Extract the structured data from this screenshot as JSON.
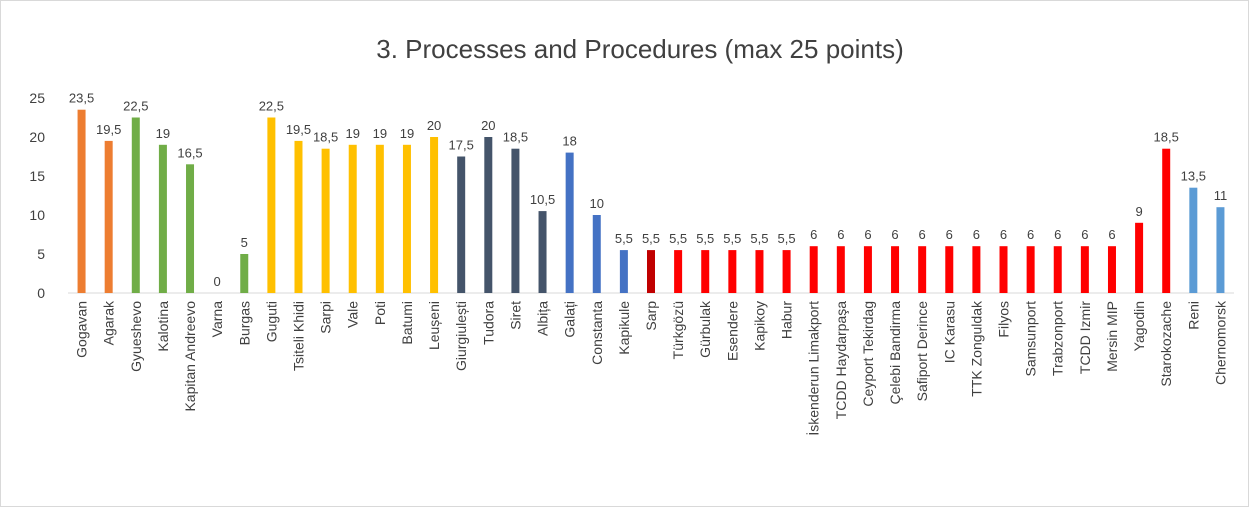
{
  "chart_data": {
    "type": "bar",
    "title": "3. Processes and Procedures (max 25 points)",
    "categories": [
      "Gogavan",
      "Agarak",
      "Gyueshevo",
      "Kalotina",
      "Kapitan Andreevo",
      "Varna",
      "Burgas",
      "Guguti",
      "Tsiteli Khidi",
      "Sarpi",
      "Vale",
      "Poti",
      "Batumi",
      "Leușeni",
      "Giurgiulești",
      "Tudora",
      "Siret",
      "Albița",
      "Galați",
      "Constanta",
      "Kapikule",
      "Sarp",
      "Türkgözü",
      "Gürbulak",
      "Esendere",
      "Kapikoy",
      "Habur",
      "İskenderun Limakport",
      "TCDD Haydarpaşa",
      "Ceyport Tekirdag",
      "Çelebi Bandirma",
      "Safiport Derince",
      "IC Karasu",
      "TTK Zonguldak",
      "Filyos",
      "Samsunport",
      "Trabzonport",
      "TCDD Izmir",
      "Mersin MIP",
      "Yagodin",
      "Starokozache",
      "Reni",
      "Chernomorsk"
    ],
    "values": [
      23.5,
      19.5,
      22.5,
      19,
      16.5,
      0,
      5,
      22.5,
      19.5,
      18.5,
      19,
      19,
      19,
      20,
      17.5,
      20,
      18.5,
      10.5,
      18,
      10,
      5.5,
      5.5,
      5.5,
      5.5,
      5.5,
      5.5,
      5.5,
      6,
      6,
      6,
      6,
      6,
      6,
      6,
      6,
      6,
      6,
      6,
      6,
      9,
      18.5,
      13.5,
      11
    ],
    "value_labels": [
      "23,5",
      "19,5",
      "22,5",
      "19",
      "16,5",
      "0",
      "5",
      "22,5",
      "19,5",
      "18,5",
      "19",
      "19",
      "19",
      "20",
      "17,5",
      "20",
      "18,5",
      "10,5",
      "18",
      "10",
      "5,5",
      "5,5",
      "5,5",
      "5,5",
      "5,5",
      "5,5",
      "5,5",
      "6",
      "6",
      "6",
      "6",
      "6",
      "6",
      "6",
      "6",
      "6",
      "6",
      "6",
      "6",
      "9",
      "18,5",
      "13,5",
      "11"
    ],
    "colors": [
      "#ED7D31",
      "#ED7D31",
      "#70AD47",
      "#70AD47",
      "#70AD47",
      "#70AD47",
      "#70AD47",
      "#FFC000",
      "#FFC000",
      "#FFC000",
      "#FFC000",
      "#FFC000",
      "#FFC000",
      "#FFC000",
      "#44546A",
      "#44546A",
      "#44546A",
      "#44546A",
      "#4472C4",
      "#4472C4",
      "#4472C4",
      "#C00000",
      "#FF0000",
      "#FF0000",
      "#FF0000",
      "#FF0000",
      "#FF0000",
      "#FF0000",
      "#FF0000",
      "#FF0000",
      "#FF0000",
      "#FF0000",
      "#FF0000",
      "#FF0000",
      "#FF0000",
      "#FF0000",
      "#FF0000",
      "#FF0000",
      "#FF0000",
      "#FF0000",
      "#FF0000",
      "#5B9BD5",
      "#5B9BD5"
    ],
    "ylim": [
      0,
      25
    ],
    "yticks": [
      0,
      5,
      10,
      15,
      20,
      25
    ],
    "grid": false
  }
}
